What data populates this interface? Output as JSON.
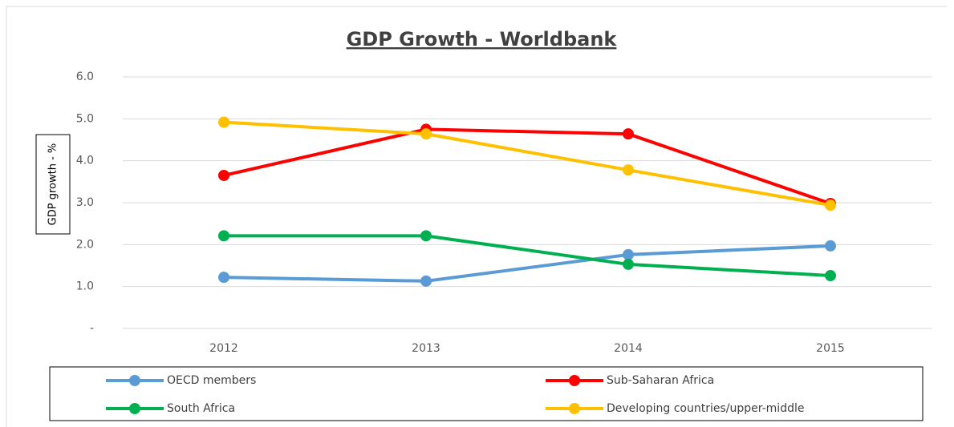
{
  "chart_data": {
    "type": "line",
    "title": "GDP Growth - Worldbank",
    "y_label": "GDP growth - %",
    "categories": [
      "2012",
      "2013",
      "2014",
      "2015"
    ],
    "series": [
      {
        "name": "OECD members",
        "color": "#5b9bd5",
        "values": [
          1.22,
          1.13,
          1.76,
          1.97
        ]
      },
      {
        "name": "Sub-Saharan Africa",
        "color": "#ff0000",
        "values": [
          3.65,
          4.75,
          4.64,
          2.98
        ]
      },
      {
        "name": "South Africa",
        "color": "#00b050",
        "values": [
          2.21,
          2.21,
          1.53,
          1.26
        ]
      },
      {
        "name": "Developing countries/upper-middle",
        "color": "#ffc000",
        "values": [
          4.92,
          4.64,
          3.78,
          2.94
        ]
      }
    ],
    "ylim": [
      0,
      6
    ],
    "yticks": [
      {
        "value": 0,
        "label": "-"
      },
      {
        "value": 1,
        "label": "1.0"
      },
      {
        "value": 2,
        "label": "2.0"
      },
      {
        "value": 3,
        "label": "3.0"
      },
      {
        "value": 4,
        "label": "4.0"
      },
      {
        "value": 5,
        "label": "5.0"
      },
      {
        "value": 6,
        "label": "6.0"
      }
    ],
    "grid": true,
    "legend_position": "bottom"
  }
}
